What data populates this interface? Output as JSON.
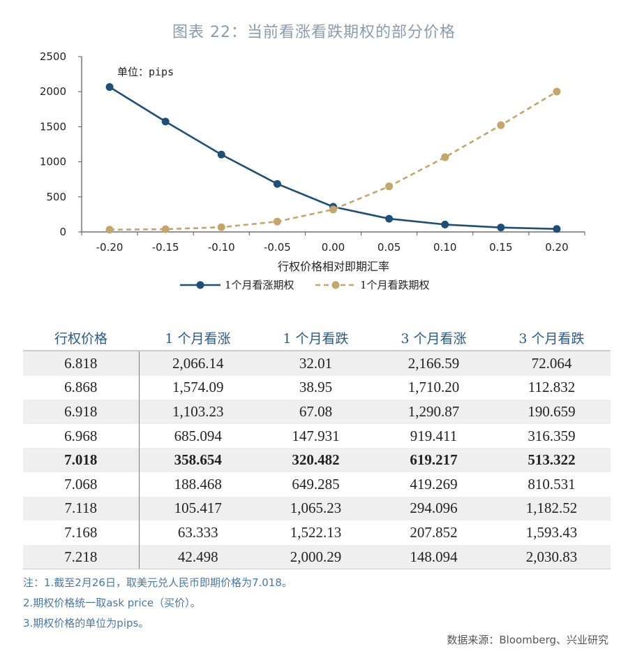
{
  "title": "图表 22：当前看涨看跌期权的部分价格",
  "chart_data": {
    "type": "line",
    "title": "图表 22：当前看涨看跌期权的部分价格",
    "unit_label": "单位：pips",
    "xlabel": "行权价格相对即期汇率",
    "ylabel": "",
    "categories": [
      "-0.20",
      "-0.15",
      "-0.10",
      "-0.05",
      "0.00",
      "0.05",
      "0.10",
      "0.15",
      "0.20"
    ],
    "yticks": [
      "0",
      "500",
      "1000",
      "1500",
      "2000",
      "2500"
    ],
    "ylim": [
      0,
      2500
    ],
    "grid": false,
    "legend_position": "bottom",
    "series": [
      {
        "name": "1个月看涨期权",
        "color": "#1f4e79",
        "style": "solid",
        "values": [
          2066.14,
          1574.09,
          1103.23,
          685.094,
          358.654,
          188.468,
          105.417,
          63.333,
          42.498
        ]
      },
      {
        "name": "1个月看跌期权",
        "color": "#c4a56a",
        "style": "dashed",
        "values": [
          32.01,
          38.95,
          67.08,
          147.931,
          320.482,
          649.285,
          1065.23,
          1522.13,
          2000.29
        ]
      }
    ]
  },
  "table": {
    "headers": [
      "行权价格",
      "1 个月看涨",
      "1 个月看跌",
      "3 个月看涨",
      "3 个月看跌"
    ],
    "rows": [
      [
        "6.818",
        "2,066.14",
        "32.01",
        "2,166.59",
        "72.064"
      ],
      [
        "6.868",
        "1,574.09",
        "38.95",
        "1,710.20",
        "112.832"
      ],
      [
        "6.918",
        "1,103.23",
        "67.08",
        "1,290.87",
        "190.659"
      ],
      [
        "6.968",
        "685.094",
        "147.931",
        "919.411",
        "316.359"
      ],
      [
        "7.018",
        "358.654",
        "320.482",
        "619.217",
        "513.322"
      ],
      [
        "7.068",
        "188.468",
        "649.285",
        "419.269",
        "810.531"
      ],
      [
        "7.118",
        "105.417",
        "1,065.23",
        "294.096",
        "1,182.52"
      ],
      [
        "7.168",
        "63.333",
        "1,522.13",
        "207.852",
        "1,593.43"
      ],
      [
        "7.218",
        "42.498",
        "2,000.29",
        "148.094",
        "2,030.83"
      ]
    ],
    "bold_row": 4
  },
  "notes": [
    "注：1.截至2月26日，取美元兑人民币即期价格为7.018。",
    "2.期权价格统一取ask price（买价）。",
    "3.期权价格的单位为pips。"
  ],
  "source": "数据来源：Bloomberg、兴业研究"
}
